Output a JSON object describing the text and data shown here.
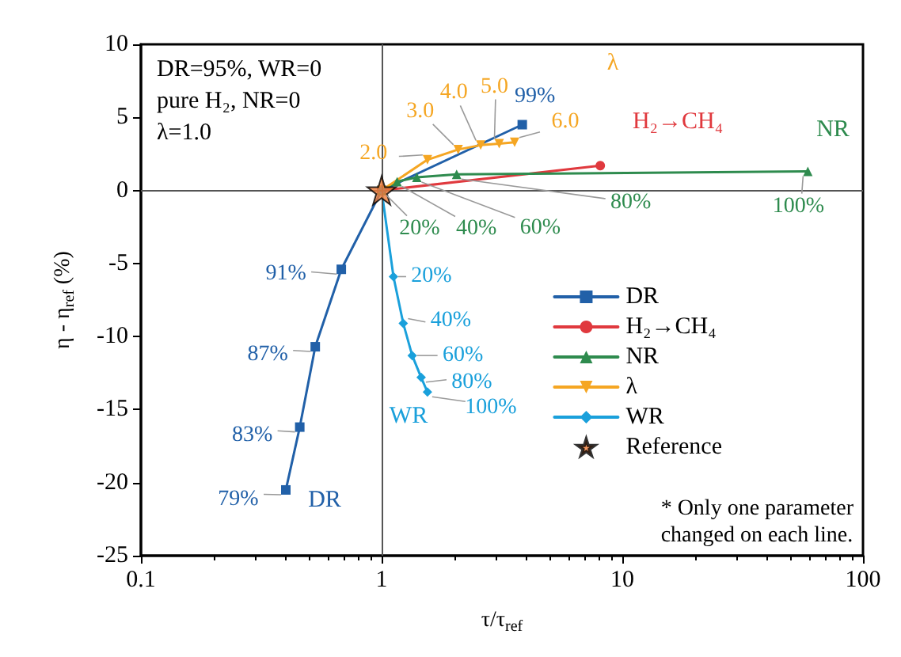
{
  "chart_data": {
    "type": "line",
    "xlabel": "τ/τ$_{ref}$",
    "ylabel": "η - η$_{ref}$ (%)",
    "log": "x",
    "xlim": [
      0.1,
      100
    ],
    "xticks": [
      0.1,
      1,
      10,
      100
    ],
    "ylim": [
      -25,
      10
    ],
    "yticks": [
      -25,
      -20,
      -15,
      -10,
      -5,
      0,
      5,
      10
    ],
    "legend": "bottom right",
    "line_style": "solid",
    "ref_lines": [
      {
        "axis": "x",
        "value": 1,
        "color": "#555555"
      },
      {
        "axis": "y",
        "value": 0,
        "color": "#555555"
      }
    ],
    "series": [
      {
        "name": "DR",
        "color": "#2160a8",
        "marker": "square",
        "x": [
          0.4,
          0.457,
          0.53,
          0.68,
          1,
          3.84
        ],
        "values": [
          -20.5,
          -16.2,
          -10.7,
          -5.4,
          0,
          4.5
        ]
      },
      {
        "name": "H₂→CH₄",
        "color": "#e0393e",
        "marker": "circle",
        "x": [
          1,
          8.1
        ],
        "values": [
          0,
          1.7
        ]
      },
      {
        "name": "NR",
        "color": "#2e8b4e",
        "marker": "triangle",
        "x": [
          1,
          1.05,
          1.16,
          1.4,
          2.05,
          59
        ],
        "values": [
          0,
          null,
          0.6,
          0.9,
          1.1,
          1.3
        ]
      },
      {
        "name": "λ",
        "color": "#f5a623",
        "marker": "triangle-down",
        "x": [
          1,
          1.55,
          2.08,
          2.58,
          3.08,
          3.57
        ],
        "values": [
          0,
          2.1,
          2.8,
          3.1,
          3.2,
          3.3
        ]
      },
      {
        "name": "WR",
        "color": "#1aa0db",
        "marker": "diamond",
        "x": [
          1,
          1.12,
          1.23,
          1.34,
          1.46,
          1.55
        ],
        "values": [
          0,
          -5.9,
          -9.1,
          -11.3,
          -12.8,
          -13.8
        ]
      },
      {
        "name": "Reference",
        "type": "scatter",
        "color": "#f07d3a",
        "marker": "star",
        "x": [
          1
        ],
        "values": [
          0
        ]
      }
    ],
    "annotations": [
      "DR=95%, WR=0\npure H₂, NR=0\nλ=1.0",
      "* Only one parameter\nchanged on each line.",
      "DR",
      "WR",
      "NR",
      "H₂→CH₄",
      "λ",
      {
        "text": "79%",
        "x": 0.4,
        "y": -20.5
      },
      {
        "text": "83%",
        "x": 0.457,
        "y": -16.2
      },
      {
        "text": "87%",
        "x": 0.53,
        "y": -10.7
      },
      {
        "text": "91%",
        "x": 0.68,
        "y": -5.4
      },
      {
        "text": "99%",
        "x": 3.84,
        "y": 4.5
      },
      {
        "text": "20%",
        "x": 1,
        "y": 0
      },
      {
        "text": "40%",
        "x": 1.16,
        "y": 0.6
      },
      {
        "text": "60%",
        "x": 1.4,
        "y": 0.9
      },
      {
        "text": "80%",
        "x": 2.05,
        "y": 1.1
      },
      {
        "text": "100%",
        "x": 59,
        "y": 1.3
      },
      {
        "text": "2.0",
        "x": 1.55,
        "y": 2.1
      },
      {
        "text": "3.0",
        "x": 2.08,
        "y": 2.8
      },
      {
        "text": "4.0",
        "x": 2.58,
        "y": 3.1
      },
      {
        "text": "5.0",
        "x": 3.08,
        "y": 3.2
      },
      {
        "text": "6.0",
        "x": 3.57,
        "y": 3.3
      },
      {
        "text": "20%",
        "x": 1.12,
        "y": -5.9
      },
      {
        "text": "40%",
        "x": 1.23,
        "y": -9.1
      },
      {
        "text": "60%",
        "x": 1.34,
        "y": -11.3
      },
      {
        "text": "80%",
        "x": 1.46,
        "y": -12.8
      },
      {
        "text": "100%",
        "x": 1.55,
        "y": -13.8
      }
    ]
  }
}
